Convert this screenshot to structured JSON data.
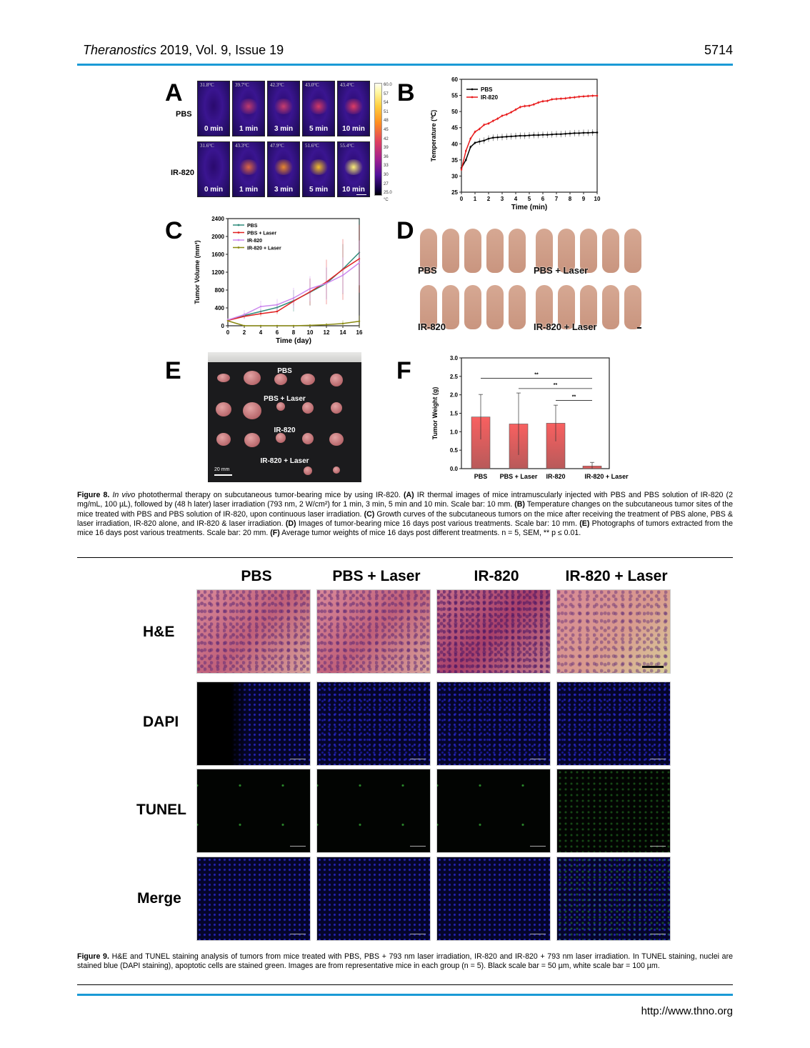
{
  "header": {
    "journal_italic": "Theranostics",
    "journal_rest": " 2019, Vol. 9, Issue 19",
    "page_number": "5714"
  },
  "figure8": {
    "panel_letters": [
      "A",
      "B",
      "C",
      "D",
      "E",
      "F"
    ],
    "panelA": {
      "row_labels": [
        "PBS",
        "IR-820"
      ],
      "times": [
        "0 min",
        "1 min",
        "3 min",
        "5 min",
        "10 min"
      ],
      "pbs_temps": [
        "31.8°C",
        "39.7°C",
        "42.3°C",
        "43.0°C",
        "43.4°C"
      ],
      "ir820_temps": [
        "31.6°C",
        "43.3°C",
        "47.9°C",
        "51.6°C",
        "55.4°C"
      ],
      "colorbar_ticks": [
        "60.0",
        "57",
        "54",
        "51",
        "48",
        "45",
        "42",
        "39",
        "36",
        "33",
        "30",
        "27",
        "25.0"
      ],
      "colorbar_unit": "°C"
    },
    "panelD": {
      "labels": [
        "PBS",
        "PBS + Laser",
        "IR-820",
        "IR-820 + Laser"
      ]
    },
    "panelE": {
      "labels": [
        "PBS",
        "PBS + Laser",
        "IR-820",
        "IR-820 + Laser"
      ],
      "scale_label": "20 mm"
    },
    "caption": {
      "title": "Figure 8.",
      "italic": "In vivo",
      "text1": " photothermal therapy on subcutaneous tumor-bearing mice by using IR-820. ",
      "A": "(A)",
      "textA": " IR thermal images of mice intramuscularly injected with PBS and PBS solution of IR-820 (2 mg/mL, 100 µL), followed by (48 h later) laser irradiation (793 nm, 2 W/cm²) for 1 min, 3 min, 5 min and 10 min. Scale bar: 10 mm. ",
      "B": "(B)",
      "textB": " Temperature changes on the subcutaneous tumor sites of the mice treated with PBS and PBS solution of IR-820, upon continuous laser irradiation. ",
      "C": "(C)",
      "textC": " Growth curves of the subcutaneous tumors on the mice after receiving the treatment of PBS alone, PBS & laser irradiation, IR-820 alone, and IR-820 & laser irradiation. ",
      "D": "(D)",
      "textD": " Images of tumor-bearing mice 16 days post various treatments. Scale bar: 10 mm. ",
      "E": "(E)",
      "textE": " Photographs of tumors extracted from the mice 16 days post various treatments. Scale bar: 20 mm. ",
      "F": "(F)",
      "textF": " Average tumor weights of mice 16 days post different treatments. n = 5, SEM, ** p ≤ 0.01."
    }
  },
  "chart_data": [
    {
      "id": "B",
      "type": "line",
      "title": "",
      "xlabel": "Time (min)",
      "ylabel": "Temperature (℃)",
      "xlim": [
        0,
        10
      ],
      "ylim": [
        25,
        60
      ],
      "xticks": [
        "0",
        "1",
        "2",
        "3",
        "4",
        "5",
        "6",
        "7",
        "8",
        "9",
        "10"
      ],
      "yticks": [
        "25",
        "30",
        "35",
        "40",
        "45",
        "50",
        "55",
        "60"
      ],
      "legend_position": "upper-left",
      "x": [
        0,
        0.33,
        0.67,
        1,
        1.33,
        1.67,
        2,
        2.33,
        2.67,
        3,
        3.33,
        3.67,
        4,
        4.33,
        4.67,
        5,
        5.33,
        5.67,
        6,
        6.33,
        6.67,
        7,
        7.33,
        7.67,
        8,
        8.33,
        8.67,
        9,
        9.33,
        9.67,
        10
      ],
      "series": [
        {
          "name": "PBS",
          "color": "#000000",
          "values": [
            32.5,
            35,
            39,
            40.3,
            40.7,
            41,
            41.6,
            41.9,
            42,
            42.1,
            42.2,
            42.3,
            42.4,
            42.5,
            42.5,
            42.6,
            42.7,
            42.7,
            42.8,
            42.8,
            42.9,
            43,
            43,
            43.1,
            43.2,
            43.3,
            43.3,
            43.4,
            43.4,
            43.5,
            43.5
          ]
        },
        {
          "name": "IR-820",
          "color": "#e8191a",
          "values": [
            32,
            37.8,
            41.6,
            43.7,
            44.6,
            45.9,
            46.3,
            47.1,
            47.8,
            48.7,
            49.1,
            49.8,
            50.6,
            51.4,
            51.7,
            51.8,
            52.2,
            52.8,
            53.2,
            53.3,
            53.8,
            53.9,
            54,
            54.1,
            54.3,
            54.4,
            54.6,
            54.7,
            54.8,
            54.9,
            54.9
          ]
        }
      ]
    },
    {
      "id": "C",
      "type": "line",
      "title": "",
      "xlabel": "Time (day)",
      "ylabel": "Tumor Volume (mm³)",
      "xlim": [
        0,
        16
      ],
      "ylim": [
        0,
        2400
      ],
      "xticks": [
        "0",
        "2",
        "4",
        "6",
        "8",
        "10",
        "12",
        "14",
        "16"
      ],
      "yticks": [
        "0",
        "400",
        "800",
        "1200",
        "1600",
        "2000",
        "2400"
      ],
      "legend_position": "upper-left",
      "x": [
        0,
        2,
        4,
        6,
        8,
        10,
        12,
        14,
        16
      ],
      "series": [
        {
          "name": "PBS",
          "color": "#2e8b7a",
          "values": [
            130,
            230,
            320,
            410,
            560,
            750,
            950,
            1270,
            1640
          ]
        },
        {
          "name": "PBS + Laser",
          "color": "#e02020",
          "values": [
            120,
            210,
            270,
            320,
            550,
            760,
            980,
            1260,
            1500
          ]
        },
        {
          "name": "IR-820",
          "color": "#cc88ee",
          "values": [
            130,
            250,
            430,
            470,
            620,
            830,
            950,
            1130,
            1410
          ]
        },
        {
          "name": "IR-820 + Laser",
          "color": "#8a8a10",
          "values": [
            110,
            0,
            0,
            0,
            0,
            10,
            25,
            50,
            100
          ]
        }
      ]
    },
    {
      "id": "F",
      "type": "bar",
      "title": "",
      "xlabel": "",
      "ylabel": "Tumor Weight (g)",
      "ylim": [
        0,
        3.0
      ],
      "yticks": [
        "0.0",
        "0.5",
        "1.0",
        "1.5",
        "2.0",
        "2.5",
        "3.0"
      ],
      "categories": [
        "PBS",
        "PBS + Laser",
        "IR-820",
        "IR-820 + Laser"
      ],
      "values": [
        1.4,
        1.21,
        1.23,
        0.07
      ],
      "errors": [
        0.61,
        0.84,
        0.49,
        0.1
      ],
      "bar_color": "#f06060",
      "annotations": [
        {
          "from": "PBS",
          "to": "IR-820 + Laser",
          "label": "**",
          "y": 2.45
        },
        {
          "from": "PBS + Laser",
          "to": "IR-820 + Laser",
          "label": "**",
          "y": 2.17
        },
        {
          "from": "IR-820",
          "to": "IR-820 + Laser",
          "label": "**",
          "y": 1.85
        }
      ]
    }
  ],
  "figure9": {
    "columns": [
      "PBS",
      "PBS + Laser",
      "IR-820",
      "IR-820 + Laser"
    ],
    "rows": [
      "H&E",
      "DAPI",
      "TUNEL",
      "Merge"
    ],
    "caption": {
      "title": "Figure 9.",
      "text": " H&E and TUNEL staining analysis of tumors from mice treated with PBS, PBS + 793 nm laser irradiation, IR-820 and IR-820 + 793 nm laser irradiation. In TUNEL staining, nuclei are stained blue (DAPI staining), apoptotic cells are stained green. Images are from representative mice in each group (n = 5). Black scale bar = 50 µm, white scale bar = 100 µm."
    }
  },
  "footer": {
    "url": "http://www.thno.org"
  },
  "colors": {
    "rule_blue": "#1a9ad6"
  }
}
